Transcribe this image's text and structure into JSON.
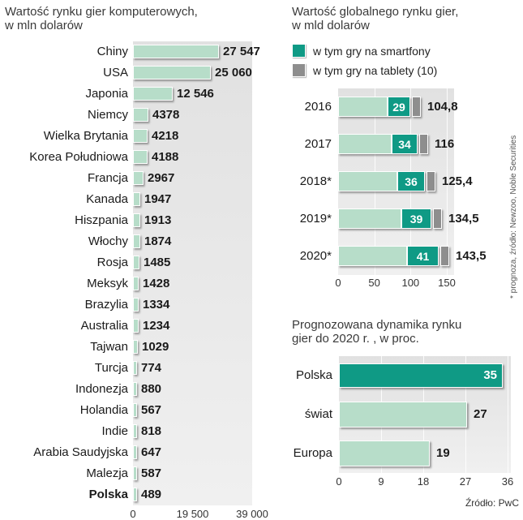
{
  "page": {
    "titles": {
      "left_line1": "Wartość rynku gier komputerowych,",
      "left_line2": "w mln dolarów",
      "global_line1": "Wartość globalnego rynku gier,",
      "global_line2": "w mld dolarów",
      "dyn_line1": "Prognozowana dynamika rynku",
      "dyn_line2": "gier do 2020 r. , w proc."
    },
    "side_note": "* prognoza, źródło: Newzoo, Noble Securities",
    "source": "Źródło: PwC"
  },
  "colors": {
    "mint": "#b7ddc9",
    "teal": "#0f9a85",
    "gray": "#8e8e8e",
    "plot_bg_top": "#e1e1e1",
    "plot_bg_bottom": "#f0f0f0"
  },
  "chart_data": [
    {
      "id": "computer_games_market",
      "type": "bar",
      "orientation": "horizontal",
      "title": "Wartość rynku gier komputerowych, w mln dolarów",
      "categories": [
        "Chiny",
        "USA",
        "Japonia",
        "Niemcy",
        "Wielka Brytania",
        "Korea Południowa",
        "Francja",
        "Kanada",
        "Hiszpania",
        "Włochy",
        "Rosja",
        "Meksyk",
        "Brazylia",
        "Australia",
        "Tajwan",
        "Turcja",
        "Indonezja",
        "Holandia",
        "Indie",
        "Arabia Saudyjska",
        "Malezja",
        "Polska"
      ],
      "values": [
        27547,
        25060,
        12546,
        4378,
        4218,
        4188,
        2967,
        1947,
        1913,
        1874,
        1485,
        1428,
        1334,
        1234,
        1029,
        774,
        880,
        567,
        818,
        647,
        587,
        489
      ],
      "value_labels": [
        "27 547",
        "25 060",
        "12 546",
        "4378",
        "4218",
        "4188",
        "2967",
        "1947",
        "1913",
        "1874",
        "1485",
        "1428",
        "1334",
        "1234",
        "1029",
        "774",
        "880",
        "567",
        "818",
        "647",
        "587",
        "489"
      ],
      "xticks": [
        "0",
        "19 500",
        "39 000"
      ],
      "xtick_values": [
        0,
        19500,
        39000
      ],
      "xlim": [
        0,
        39000
      ],
      "highlight_category": "Polska"
    },
    {
      "id": "global_games_market",
      "type": "stacked_bar",
      "orientation": "horizontal",
      "title": "Wartość globalnego rynku gier, w mld dolarów",
      "legend": [
        {
          "label": "w tym gry na smartfony",
          "color": "#0f9a85"
        },
        {
          "label": "w tym gry na tablety (10)",
          "color": "#8e8e8e"
        }
      ],
      "categories": [
        "2016",
        "2017",
        "2018*",
        "2019*",
        "2020*"
      ],
      "totals": [
        104.8,
        116,
        125.4,
        134.5,
        143.5
      ],
      "total_labels": [
        "104,8",
        "116",
        "125,4",
        "134,5",
        "143,5"
      ],
      "smartphone_values": [
        29,
        34,
        36,
        39,
        41
      ],
      "tablet_value": 10,
      "xticks": [
        "0",
        "50",
        "100",
        "150"
      ],
      "xtick_values": [
        0,
        50,
        100,
        150
      ],
      "xlim": [
        0,
        150
      ],
      "side_note": "* prognoza, źródło: Newzoo, Noble Securities"
    },
    {
      "id": "market_dynamics_forecast",
      "type": "bar",
      "orientation": "horizontal",
      "title": "Prognozowana dynamika rynku gier do 2020 r. , w proc.",
      "categories": [
        "Polska",
        "świat",
        "Europa"
      ],
      "values": [
        35,
        27,
        19
      ],
      "xticks": [
        "0",
        "9",
        "18",
        "27",
        "36"
      ],
      "xtick_values": [
        0,
        9,
        18,
        27,
        36
      ],
      "xlim": [
        0,
        36
      ],
      "highlight_category": "Polska",
      "source": "Źródło: PwC"
    }
  ]
}
